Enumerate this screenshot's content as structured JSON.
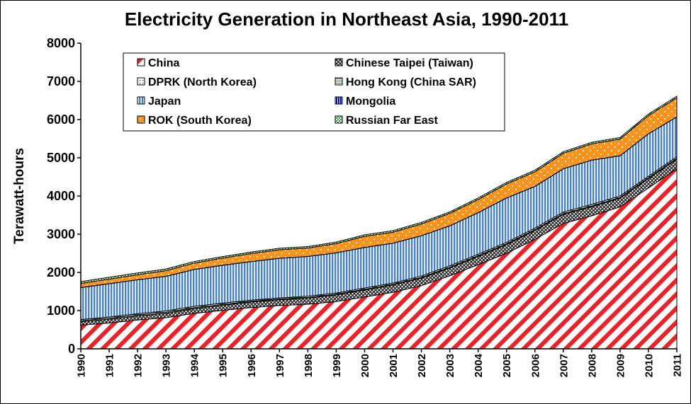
{
  "chart_data": {
    "type": "area",
    "stacked": true,
    "title": "Electricity Generation in Northeast Asia, 1990-2011",
    "ylabel": "Terawatt-hours",
    "xlabel": "",
    "ylim": [
      0,
      8000
    ],
    "yticks": [
      0,
      1000,
      2000,
      3000,
      4000,
      5000,
      6000,
      7000,
      8000
    ],
    "x": [
      "1990",
      "1991",
      "1992",
      "1993",
      "1994",
      "1995",
      "1996",
      "1997",
      "1998",
      "1999",
      "2000",
      "2001",
      "2002",
      "2003",
      "2004",
      "2005",
      "2006",
      "2007",
      "2008",
      "2009",
      "2010",
      "2011"
    ],
    "grid": false,
    "legend_position": "top-left, inside plot, two columns",
    "series": [
      {
        "name": "China",
        "color": "#e8232a",
        "pattern": "diagonal-stripes",
        "values": [
          621,
          677,
          754,
          815,
          928,
          1007,
          1081,
          1134,
          1167,
          1239,
          1356,
          1480,
          1654,
          1911,
          2204,
          2500,
          2866,
          3281,
          3481,
          3714,
          4208,
          4714
        ]
      },
      {
        "name": "Chinese Taipei (Taiwan)",
        "color": "#404040",
        "pattern": "crosshatch",
        "values": [
          89,
          98,
          105,
          114,
          123,
          133,
          143,
          150,
          162,
          172,
          184,
          190,
          196,
          205,
          214,
          225,
          232,
          238,
          236,
          228,
          247,
          252
        ]
      },
      {
        "name": "DPRK (North Korea)",
        "color": "#ffffff",
        "pattern": "dots",
        "values": [
          28,
          27,
          27,
          26,
          25,
          23,
          21,
          19,
          17,
          19,
          19,
          20,
          19,
          20,
          21,
          23,
          22,
          22,
          22,
          21,
          22,
          22
        ]
      },
      {
        "name": "Hong Kong (China SAR)",
        "color": "#ffffff",
        "pattern": "horizontal-lines",
        "values": [
          28,
          31,
          34,
          35,
          36,
          33,
          28,
          29,
          31,
          31,
          32,
          33,
          35,
          37,
          37,
          38,
          38,
          39,
          38,
          38,
          38,
          39
        ]
      },
      {
        "name": "Japan",
        "color": "#4f81bd",
        "pattern": "vertical-lines",
        "values": [
          836,
          870,
          886,
          906,
          964,
          990,
          1010,
          1035,
          1040,
          1050,
          1060,
          1040,
          1055,
          1045,
          1085,
          1160,
          1090,
          1130,
          1160,
          1050,
          1110,
          1040
        ]
      },
      {
        "name": "Mongolia",
        "color": "#0000cc",
        "pattern": "vertical-lines",
        "values": [
          3,
          3,
          3,
          3,
          3,
          3,
          3,
          3,
          3,
          3,
          3,
          3,
          3,
          3,
          4,
          4,
          4,
          4,
          4,
          4,
          5,
          5
        ]
      },
      {
        "name": "ROK (South Korea)",
        "color": "#f7941d",
        "pattern": "dots",
        "values": [
          107,
          119,
          131,
          145,
          165,
          185,
          206,
          223,
          216,
          240,
          290,
          285,
          306,
          322,
          342,
          364,
          381,
          403,
          422,
          433,
          474,
          496
        ]
      },
      {
        "name": "Russian Far East",
        "color": "#66cc66",
        "pattern": "checker",
        "values": [
          48,
          47,
          46,
          44,
          42,
          41,
          40,
          40,
          39,
          40,
          41,
          41,
          41,
          40,
          41,
          41,
          42,
          42,
          42,
          41,
          42,
          43
        ]
      }
    ]
  }
}
